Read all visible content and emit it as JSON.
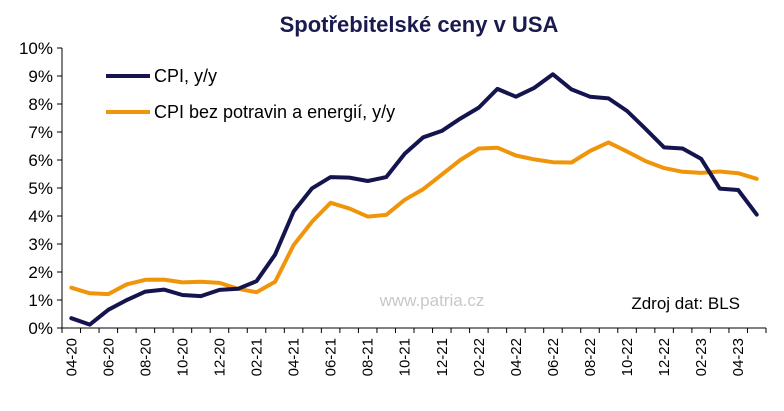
{
  "chart_data": {
    "type": "line",
    "title": "Spotřebitelské ceny v USA",
    "xlabel": "",
    "ylabel": "",
    "ylim": [
      0,
      10
    ],
    "y_ticks": [
      "0%",
      "1%",
      "2%",
      "3%",
      "4%",
      "5%",
      "6%",
      "7%",
      "8%",
      "9%",
      "10%"
    ],
    "x": [
      "04-20",
      "05-20",
      "06-20",
      "07-20",
      "08-20",
      "09-20",
      "10-20",
      "11-20",
      "12-20",
      "01-21",
      "02-21",
      "03-21",
      "04-21",
      "05-21",
      "06-21",
      "07-21",
      "08-21",
      "09-21",
      "10-21",
      "11-21",
      "12-21",
      "01-22",
      "02-22",
      "03-22",
      "04-22",
      "05-22",
      "06-22",
      "07-22",
      "08-22",
      "09-22",
      "10-22",
      "11-22",
      "12-22",
      "01-23",
      "02-23",
      "03-23",
      "04-23",
      "05-23"
    ],
    "x_tick_labels": [
      "04-20",
      "06-20",
      "08-20",
      "10-20",
      "12-20",
      "02-21",
      "04-21",
      "06-21",
      "08-21",
      "10-21",
      "12-21",
      "02-22",
      "04-22",
      "06-22",
      "08-22",
      "10-22",
      "12-22",
      "02-23",
      "04-23"
    ],
    "series": [
      {
        "name": "CPI, y/y",
        "color": "#14144f",
        "values": [
          0.35,
          0.12,
          0.65,
          1.0,
          1.3,
          1.37,
          1.18,
          1.14,
          1.36,
          1.4,
          1.67,
          2.62,
          4.16,
          4.99,
          5.39,
          5.37,
          5.25,
          5.39,
          6.22,
          6.81,
          7.04,
          7.48,
          7.87,
          8.54,
          8.26,
          8.58,
          9.06,
          8.52,
          8.26,
          8.2,
          7.75,
          7.11,
          6.45,
          6.41,
          6.04,
          4.98,
          4.93,
          4.05
        ]
      },
      {
        "name": "CPI bez potravin a energií, y/y",
        "color": "#f0950a",
        "values": [
          1.44,
          1.24,
          1.21,
          1.56,
          1.72,
          1.73,
          1.63,
          1.65,
          1.61,
          1.4,
          1.28,
          1.65,
          2.96,
          3.8,
          4.47,
          4.27,
          3.98,
          4.04,
          4.58,
          4.96,
          5.48,
          6.0,
          6.41,
          6.44,
          6.16,
          6.02,
          5.92,
          5.91,
          6.32,
          6.63,
          6.3,
          5.96,
          5.71,
          5.58,
          5.54,
          5.59,
          5.53,
          5.33
        ]
      }
    ],
    "legend": "top-left",
    "grid": false,
    "watermark": "www.patria.cz",
    "source": "Zdroj dat: BLS"
  }
}
